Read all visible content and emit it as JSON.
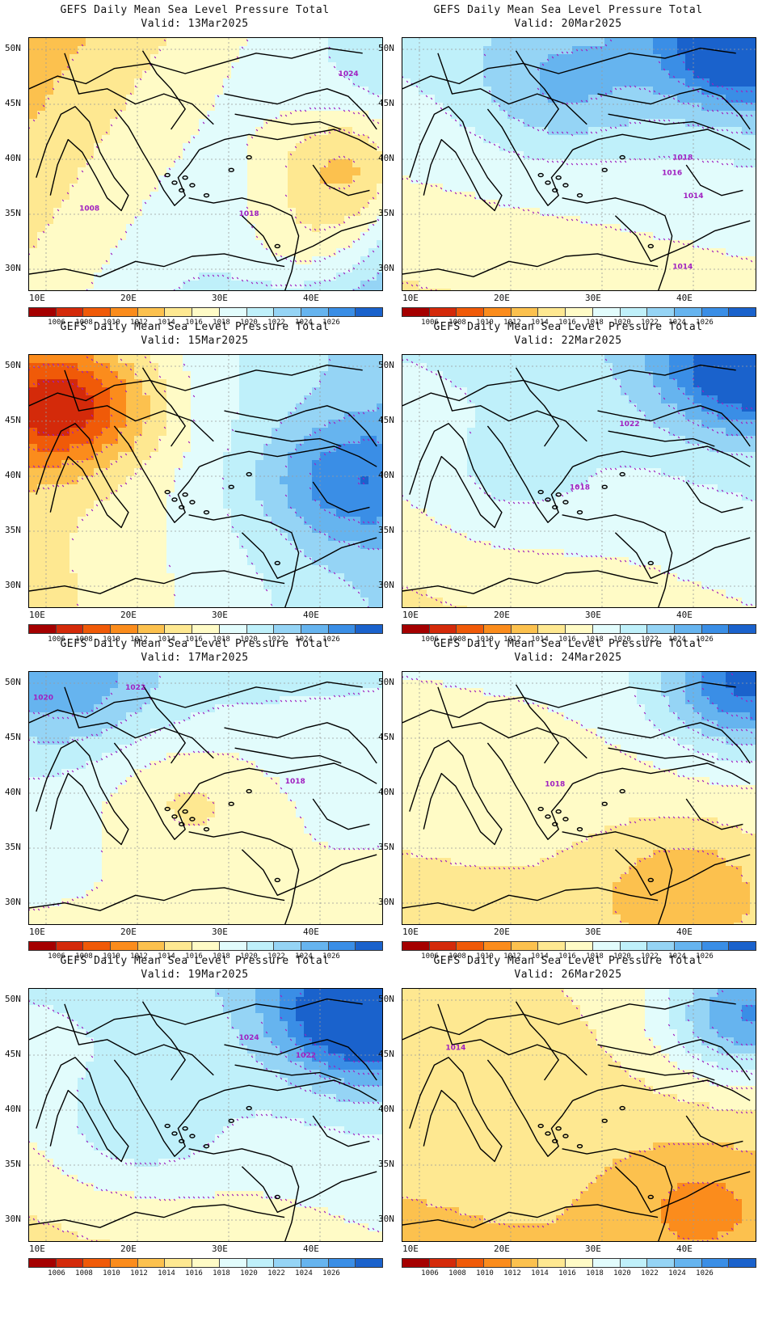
{
  "title_line": "GEFS Daily Mean Sea Level Pressure Total",
  "lat_labels": [
    "50N",
    "45N",
    "40N",
    "35N",
    "30N"
  ],
  "lon_labels": [
    "10E",
    "20E",
    "30E",
    "40E"
  ],
  "colorbar": {
    "labels": [
      "1006",
      "1008",
      "1010",
      "1012",
      "1014",
      "1016",
      "1018",
      "1020",
      "1022",
      "1024",
      "1026"
    ],
    "colors": [
      "#a50000",
      "#d42a0a",
      "#f05a08",
      "#fb8c1c",
      "#fcc14e",
      "#fee891",
      "#fffbc6",
      "#e2fcfc",
      "#bff0fa",
      "#95d4f5",
      "#66b4ef",
      "#3a8ee6",
      "#1a62cc"
    ]
  },
  "contour_color": "#a020c0",
  "panels": [
    {
      "valid": "Valid: 13Mar2025",
      "labels": [
        {
          "text": "1008",
          "fx": 0.17,
          "fy": 0.68
        },
        {
          "text": "1018",
          "fx": 0.62,
          "fy": 0.7
        },
        {
          "text": "1024",
          "fx": 0.9,
          "fy": 0.15
        }
      ]
    },
    {
      "valid": "Valid: 20Mar2025",
      "labels": [
        {
          "text": "1018",
          "fx": 0.79,
          "fy": 0.48
        },
        {
          "text": "1016",
          "fx": 0.76,
          "fy": 0.54
        },
        {
          "text": "1014",
          "fx": 0.82,
          "fy": 0.63
        },
        {
          "text": "1014",
          "fx": 0.79,
          "fy": 0.91
        }
      ]
    },
    {
      "valid": "Valid: 15Mar2025",
      "labels": []
    },
    {
      "valid": "Valid: 22Mar2025",
      "labels": [
        {
          "text": "1022",
          "fx": 0.64,
          "fy": 0.28
        },
        {
          "text": "1018",
          "fx": 0.5,
          "fy": 0.53
        }
      ]
    },
    {
      "valid": "Valid: 17Mar2025",
      "labels": [
        {
          "text": "1020",
          "fx": 0.04,
          "fy": 0.11
        },
        {
          "text": "1022",
          "fx": 0.3,
          "fy": 0.07
        },
        {
          "text": "1018",
          "fx": 0.75,
          "fy": 0.44
        }
      ]
    },
    {
      "valid": "Valid: 24Mar2025",
      "labels": [
        {
          "text": "1018",
          "fx": 0.43,
          "fy": 0.45
        }
      ]
    },
    {
      "valid": "Valid: 19Mar2025",
      "labels": [
        {
          "text": "1024",
          "fx": 0.62,
          "fy": 0.2
        },
        {
          "text": "1022",
          "fx": 0.78,
          "fy": 0.27
        }
      ]
    },
    {
      "valid": "Valid: 26Mar2025",
      "labels": [
        {
          "text": "1014",
          "fx": 0.15,
          "fy": 0.24
        }
      ]
    }
  ]
}
